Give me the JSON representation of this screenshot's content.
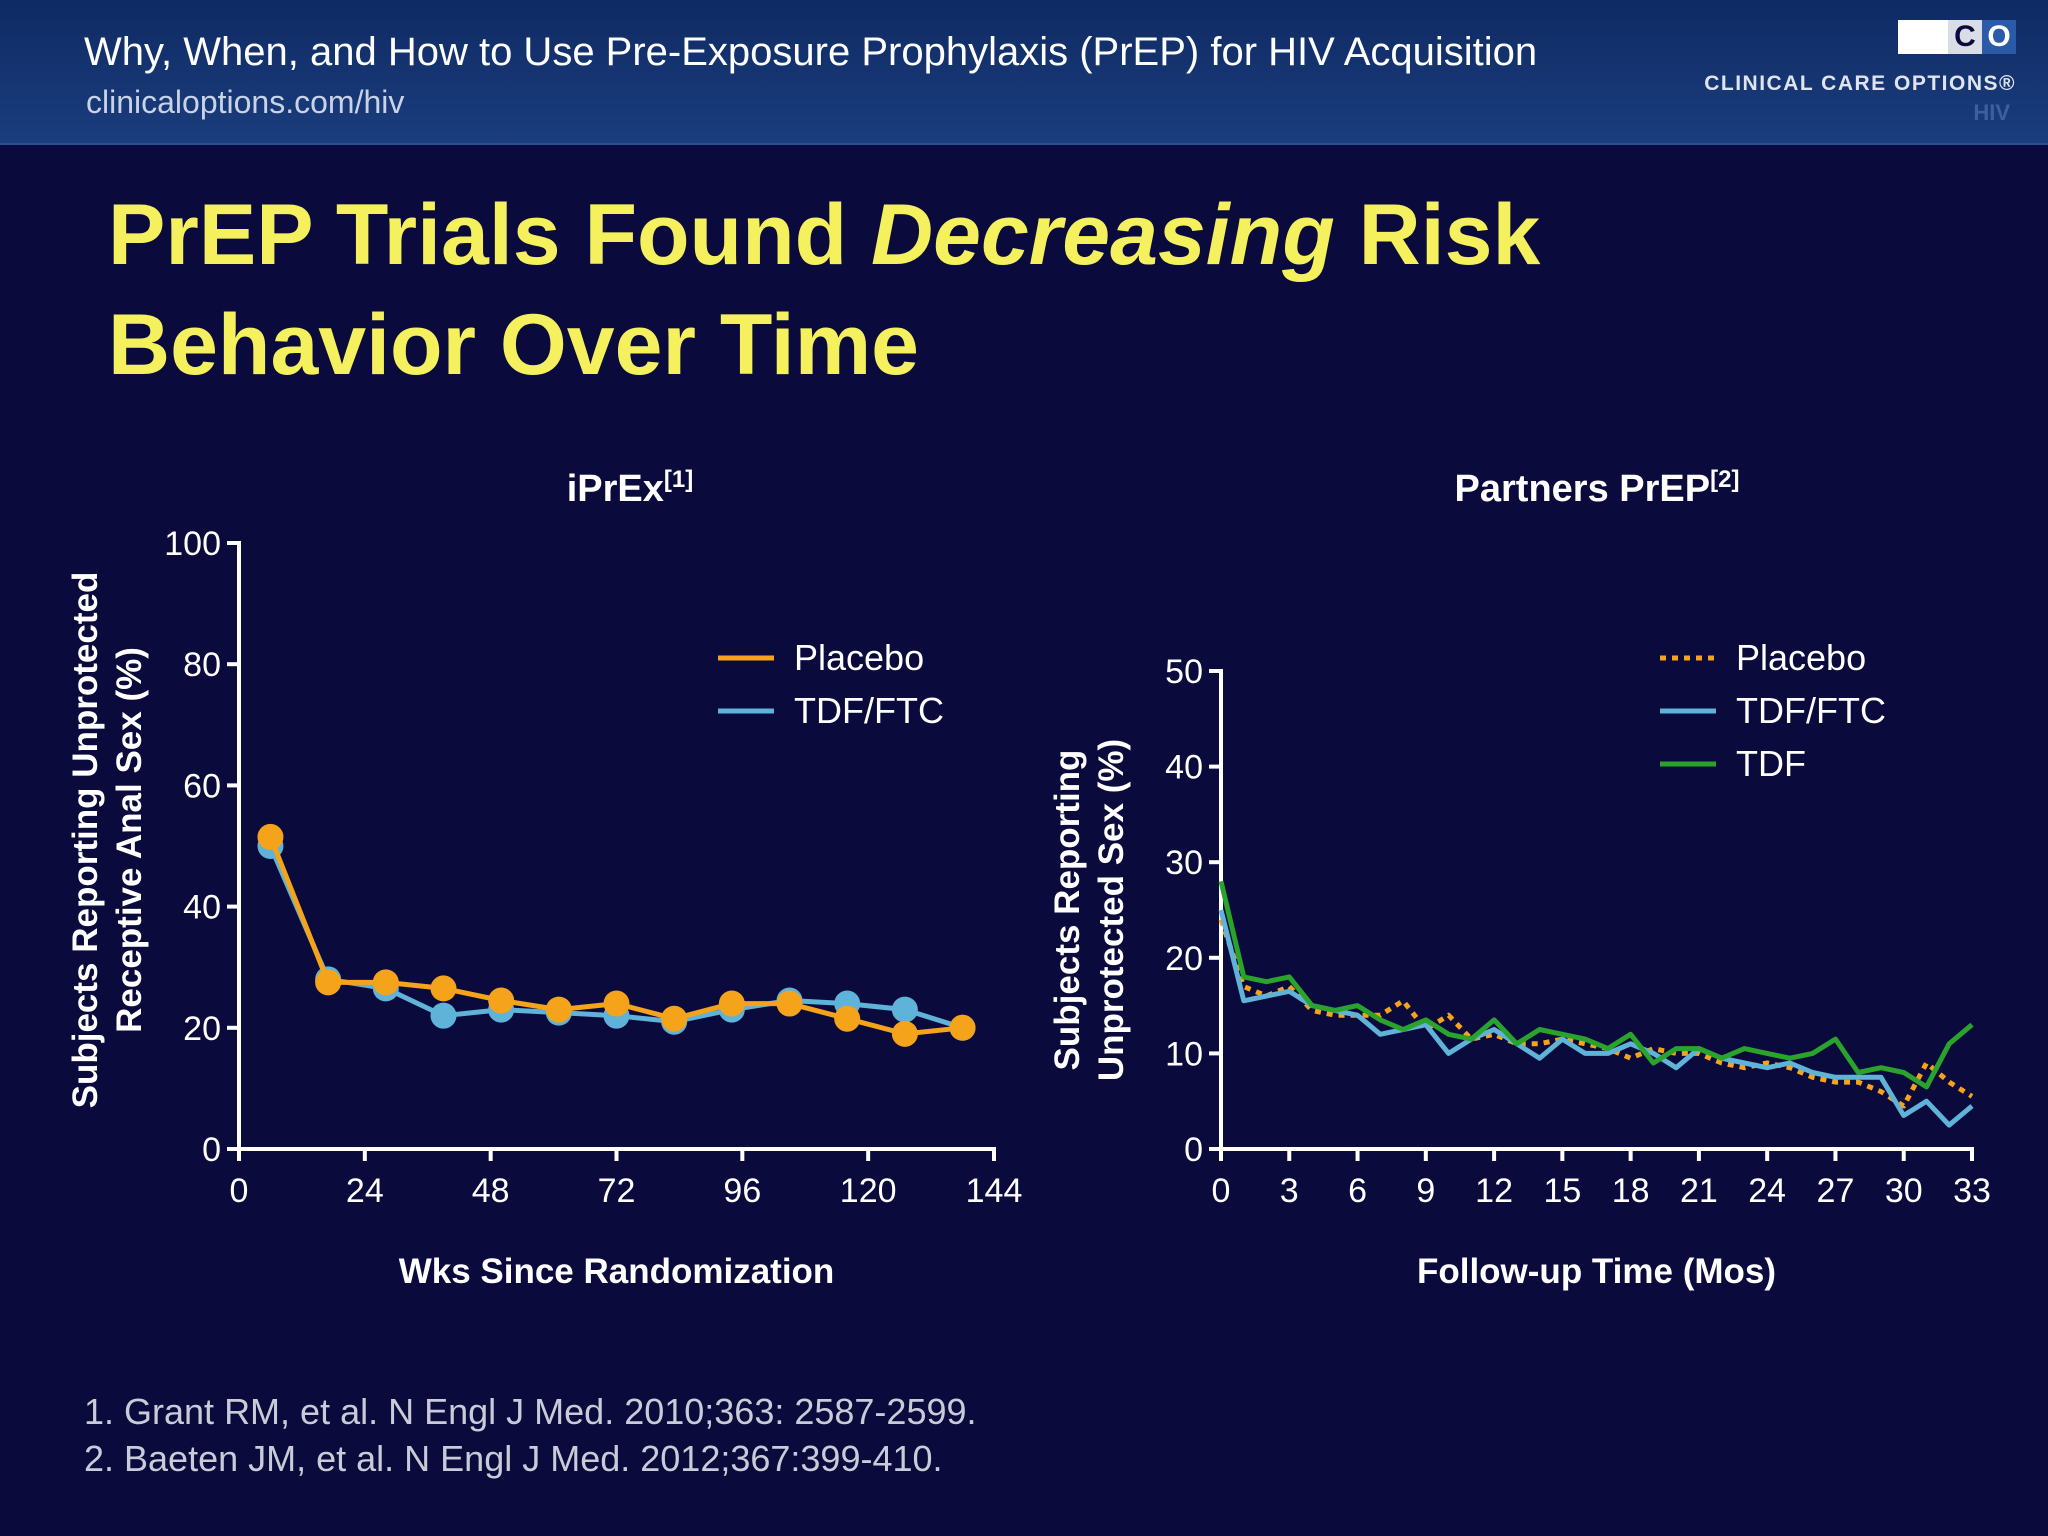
{
  "header": {
    "title": "Why, When, and How to Use Pre-Exposure Prophylaxis (PrEP) for HIV Acquisition",
    "url": "clinicaloptions.com/hiv",
    "logo_letters": "CCO",
    "logo_text": "CLINICAL CARE OPTIONS®",
    "logo_sub": "HIV"
  },
  "slide": {
    "title_part1": "PrEP Trials Found ",
    "title_italic": "Decreasing",
    "title_part2": " Risk Behavior Over Time"
  },
  "colors": {
    "placebo": "#f5a31a",
    "tdf_ftc": "#5fb2d8",
    "tdf": "#2aa32c",
    "title": "#f4f05e",
    "background": "#0a0a3c"
  },
  "chart_data": [
    {
      "type": "line",
      "title": "iPrEx",
      "title_ref": "[1]",
      "xlabel": "Wks Since Randomization",
      "ylabel_lines": [
        "Subjects Reporting Unprotected",
        "Receptive Anal Sex (%)"
      ],
      "xlim": [
        0,
        144
      ],
      "ylim": [
        0,
        100
      ],
      "xticks": [
        0,
        24,
        48,
        72,
        96,
        120,
        144
      ],
      "yticks": [
        0,
        20,
        40,
        60,
        80,
        100
      ],
      "legend_position": "top-right",
      "markers": true,
      "series": [
        {
          "name": "TDF/FTC",
          "color": "#5fb2d8",
          "dash": false,
          "x": [
            6,
            17,
            28,
            39,
            50,
            61,
            72,
            83,
            94,
            105,
            116,
            127,
            138
          ],
          "y": [
            50,
            28,
            26.5,
            22,
            23,
            22.5,
            22,
            21,
            23,
            24.5,
            24,
            23,
            20
          ]
        },
        {
          "name": "Placebo",
          "color": "#f5a31a",
          "dash": false,
          "x": [
            6,
            17,
            28,
            39,
            50,
            61,
            72,
            83,
            94,
            105,
            116,
            127,
            138
          ],
          "y": [
            51.5,
            27.5,
            27.5,
            26.5,
            24.5,
            23,
            24,
            21.5,
            24,
            24,
            21.5,
            19,
            20
          ]
        }
      ],
      "legend_order": [
        "Placebo",
        "TDF/FTC"
      ]
    },
    {
      "type": "line",
      "title": "Partners PrEP",
      "title_ref": "[2]",
      "xlabel": "Follow-up Time (Mos)",
      "ylabel_lines": [
        "Subjects Reporting",
        "Unprotected Sex (%)"
      ],
      "xlim": [
        0,
        33
      ],
      "ylim": [
        0,
        50
      ],
      "xticks": [
        0,
        3,
        6,
        9,
        12,
        15,
        18,
        21,
        24,
        27,
        30,
        33
      ],
      "yticks": [
        0,
        10,
        20,
        30,
        40,
        50
      ],
      "legend_position": "top-right",
      "markers": false,
      "series": [
        {
          "name": "Placebo",
          "color": "#f5a31a",
          "dash": true,
          "x": [
            0,
            1,
            2,
            3,
            4,
            5,
            6,
            7,
            8,
            9,
            10,
            11,
            12,
            13,
            14,
            15,
            16,
            17,
            18,
            19,
            20,
            21,
            22,
            23,
            24,
            25,
            26,
            27,
            28,
            29,
            30,
            31,
            32,
            33
          ],
          "y": [
            24,
            17,
            16,
            17,
            14.5,
            14,
            14,
            14,
            15.5,
            12.5,
            14,
            11.5,
            12,
            11,
            11,
            11.5,
            11,
            10.5,
            9.5,
            10.5,
            10,
            10,
            9,
            8.5,
            9,
            8.5,
            7.5,
            7,
            7,
            6,
            4.5,
            9,
            7,
            5.5
          ]
        },
        {
          "name": "TDF/FTC",
          "color": "#5fb2d8",
          "dash": false,
          "x": [
            0,
            1,
            2,
            3,
            4,
            5,
            6,
            7,
            8,
            9,
            10,
            11,
            12,
            13,
            14,
            15,
            16,
            17,
            18,
            19,
            20,
            21,
            22,
            23,
            24,
            25,
            26,
            27,
            28,
            29,
            30,
            31,
            32,
            33
          ],
          "y": [
            25,
            15.5,
            16,
            16.5,
            15,
            14.5,
            14,
            12,
            12.5,
            13,
            10,
            11.5,
            12.5,
            11,
            9.5,
            11.5,
            10,
            10,
            11,
            10,
            8.5,
            10.5,
            9.5,
            9,
            8.5,
            9,
            8,
            7.5,
            7.5,
            7.5,
            3.5,
            5,
            2.5,
            4.5
          ]
        },
        {
          "name": "TDF",
          "color": "#2aa32c",
          "dash": false,
          "x": [
            0,
            1,
            2,
            3,
            4,
            5,
            6,
            7,
            8,
            9,
            10,
            11,
            12,
            13,
            14,
            15,
            16,
            17,
            18,
            19,
            20,
            21,
            22,
            23,
            24,
            25,
            26,
            27,
            28,
            29,
            30,
            31,
            32,
            33
          ],
          "y": [
            28,
            18,
            17.5,
            18,
            15,
            14.5,
            15,
            13.5,
            12.5,
            13.5,
            12,
            11.5,
            13.5,
            11,
            12.5,
            12,
            11.5,
            10.5,
            12,
            9,
            10.5,
            10.5,
            9.5,
            10.5,
            10,
            9.5,
            10,
            11.5,
            8,
            8.5,
            8,
            6.5,
            11,
            13
          ]
        }
      ],
      "legend_order": [
        "Placebo",
        "TDF/FTC",
        "TDF"
      ]
    }
  ],
  "footnotes": [
    "1. Grant RM, et al. N Engl J Med. 2010;363: 2587-2599.",
    "2. Baeten JM, et al. N Engl J Med. 2012;367:399-410."
  ]
}
